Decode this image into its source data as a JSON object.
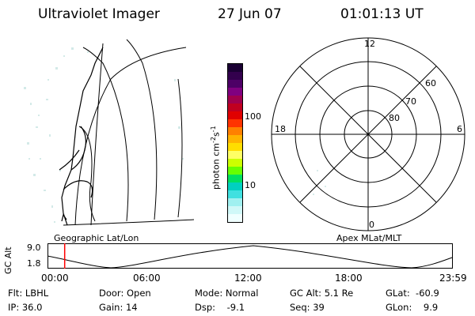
{
  "header": {
    "instrument": "Ultraviolet Imager",
    "date": "27 Jun 07",
    "time": "01:01:13 UT"
  },
  "colorbar": {
    "label": "photon cm",
    "label_sup1": "-2",
    "label_mid": "s",
    "label_sup2": "-1",
    "ticks": [
      "100",
      "10"
    ],
    "colors": [
      "#1a0033",
      "#33004d",
      "#4d0066",
      "#800080",
      "#a0004d",
      "#c00020",
      "#e00000",
      "#ff3300",
      "#ff8000",
      "#ffb300",
      "#ffdd00",
      "#ffff66",
      "#ccff00",
      "#66ff00",
      "#00e060",
      "#00d0c0",
      "#40e0e0",
      "#a0f0f0",
      "#d0f8f8",
      "#f0ffff"
    ]
  },
  "left_panel": {
    "caption": "Geographic Lat/Lon"
  },
  "right_panel": {
    "caption": "Apex MLat/MLT",
    "mlt_labels": [
      "12",
      "18",
      "6",
      "0"
    ],
    "mlat_labels": [
      "60",
      "70",
      "80"
    ]
  },
  "altitude_plot": {
    "ylabel": "GC Alt",
    "yticks": [
      "9.0",
      "1.8"
    ],
    "xticks": [
      "00:00",
      "06:00",
      "12:00",
      "18:00",
      "23:59"
    ],
    "marker_time": "01:01",
    "marker_color": "#ff0000"
  },
  "info": {
    "flt": "Flt: LBHL",
    "ip": "IP: 36.0",
    "door": "Door: Open",
    "gain": "Gain: 14",
    "mode": "Mode: Normal",
    "dsp": "Dsp:    -9.1",
    "gcalt": "GC Alt: 5.1 Re",
    "seq": "Seq: 39",
    "glat": "GLat:  -60.9",
    "glon": "GLon:    9.9"
  }
}
